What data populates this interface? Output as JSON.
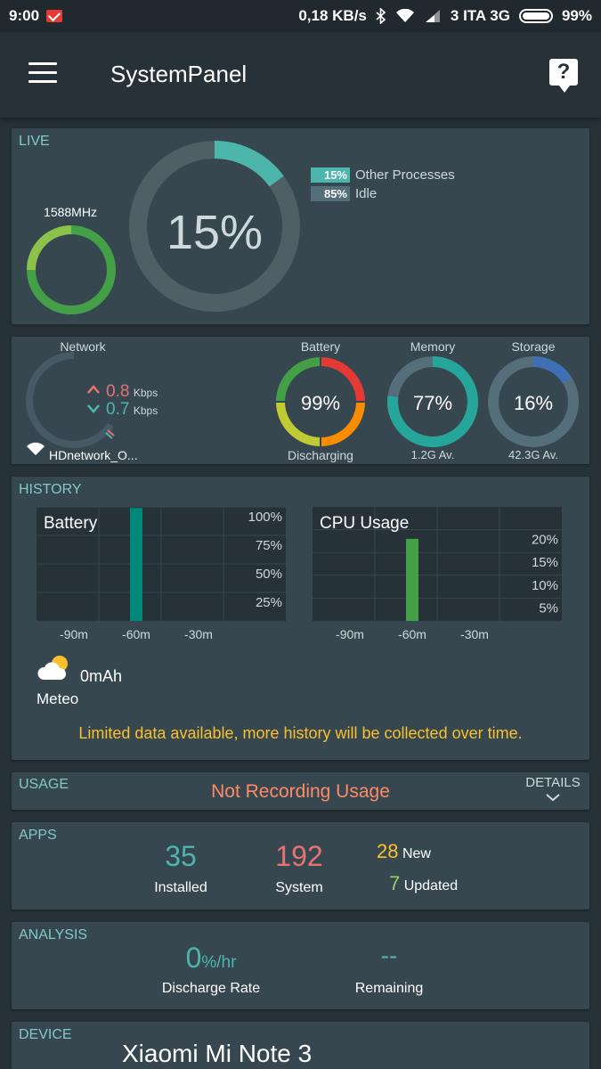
{
  "status_bar": {
    "time": "9:00",
    "speed": "0,18 KB/s",
    "carrier": "3 ITA 3G",
    "battery": "99%",
    "icons": [
      "gmail-icon",
      "bluetooth-icon",
      "wifi-icon",
      "signal-icon",
      "battery-icon"
    ]
  },
  "app_bar": {
    "title": "SystemPanel",
    "help_label": "?"
  },
  "live": {
    "label": "LIVE",
    "cpu_freq": "1588MHz",
    "cpu_percent": "15%",
    "cpu_fraction": 0.15,
    "legend": [
      {
        "value": "15%",
        "label": "Other Processes",
        "color": "#4db6ac"
      },
      {
        "value": "85%",
        "label": "Idle",
        "color": "#546e7a"
      }
    ],
    "freq_ring_colors": [
      "#43a047",
      "#8bc34a"
    ]
  },
  "stats": {
    "network": {
      "label": "Network",
      "up_value": "0.8",
      "up_unit": "Kbps",
      "down_value": "0.7",
      "down_unit": "Kbps",
      "ssid": "HDnetwork_O...",
      "up_color": "#e57373",
      "down_color": "#4db6ac"
    },
    "battery": {
      "label": "Battery",
      "value": "99%",
      "sub": "Discharging",
      "fraction": 0.99
    },
    "memory": {
      "label": "Memory",
      "value": "77%",
      "sub": "1.2G Av.",
      "fraction": 0.77,
      "color": "#26a69a"
    },
    "storage": {
      "label": "Storage",
      "value": "16%",
      "sub": "42.3G Av.",
      "fraction": 0.16,
      "color": "#3f6fb5"
    }
  },
  "history": {
    "label": "HISTORY",
    "battery_chart": {
      "title": "Battery",
      "y_ticks": [
        "100%",
        "75%",
        "50%",
        "25%"
      ],
      "x_ticks": [
        "-90m",
        "-60m",
        "-30m"
      ],
      "bar_x": "-60m",
      "bar_value": 99,
      "color": "#00897b"
    },
    "cpu_chart": {
      "title": "CPU Usage",
      "y_ticks": [
        "20%",
        "15%",
        "10%",
        "5%"
      ],
      "x_ticks": [
        "-90m",
        "-60m",
        "-30m"
      ],
      "bar_x": "-60m",
      "bar_value": 18,
      "color": "#43a047"
    },
    "meteo_label": "Meteo",
    "mah": "0mAh",
    "notice": "Limited data available, more history will be collected over time."
  },
  "usage": {
    "label": "USAGE",
    "status": "Not Recording Usage",
    "details_label": "DETAILS"
  },
  "apps": {
    "label": "APPS",
    "installed_value": "35",
    "installed_label": "Installed",
    "system_value": "192",
    "system_label": "System",
    "new_value": "28",
    "new_label": "New",
    "updated_value": "7",
    "updated_label": "Updated"
  },
  "analysis": {
    "label": "ANALYSIS",
    "rate_value": "0",
    "rate_unit": "%/hr",
    "rate_label": "Discharge Rate",
    "remaining_value": "--",
    "remaining_label": "Remaining"
  },
  "device": {
    "label": "DEVICE",
    "name": "Xiaomi Mi Note 3"
  }
}
